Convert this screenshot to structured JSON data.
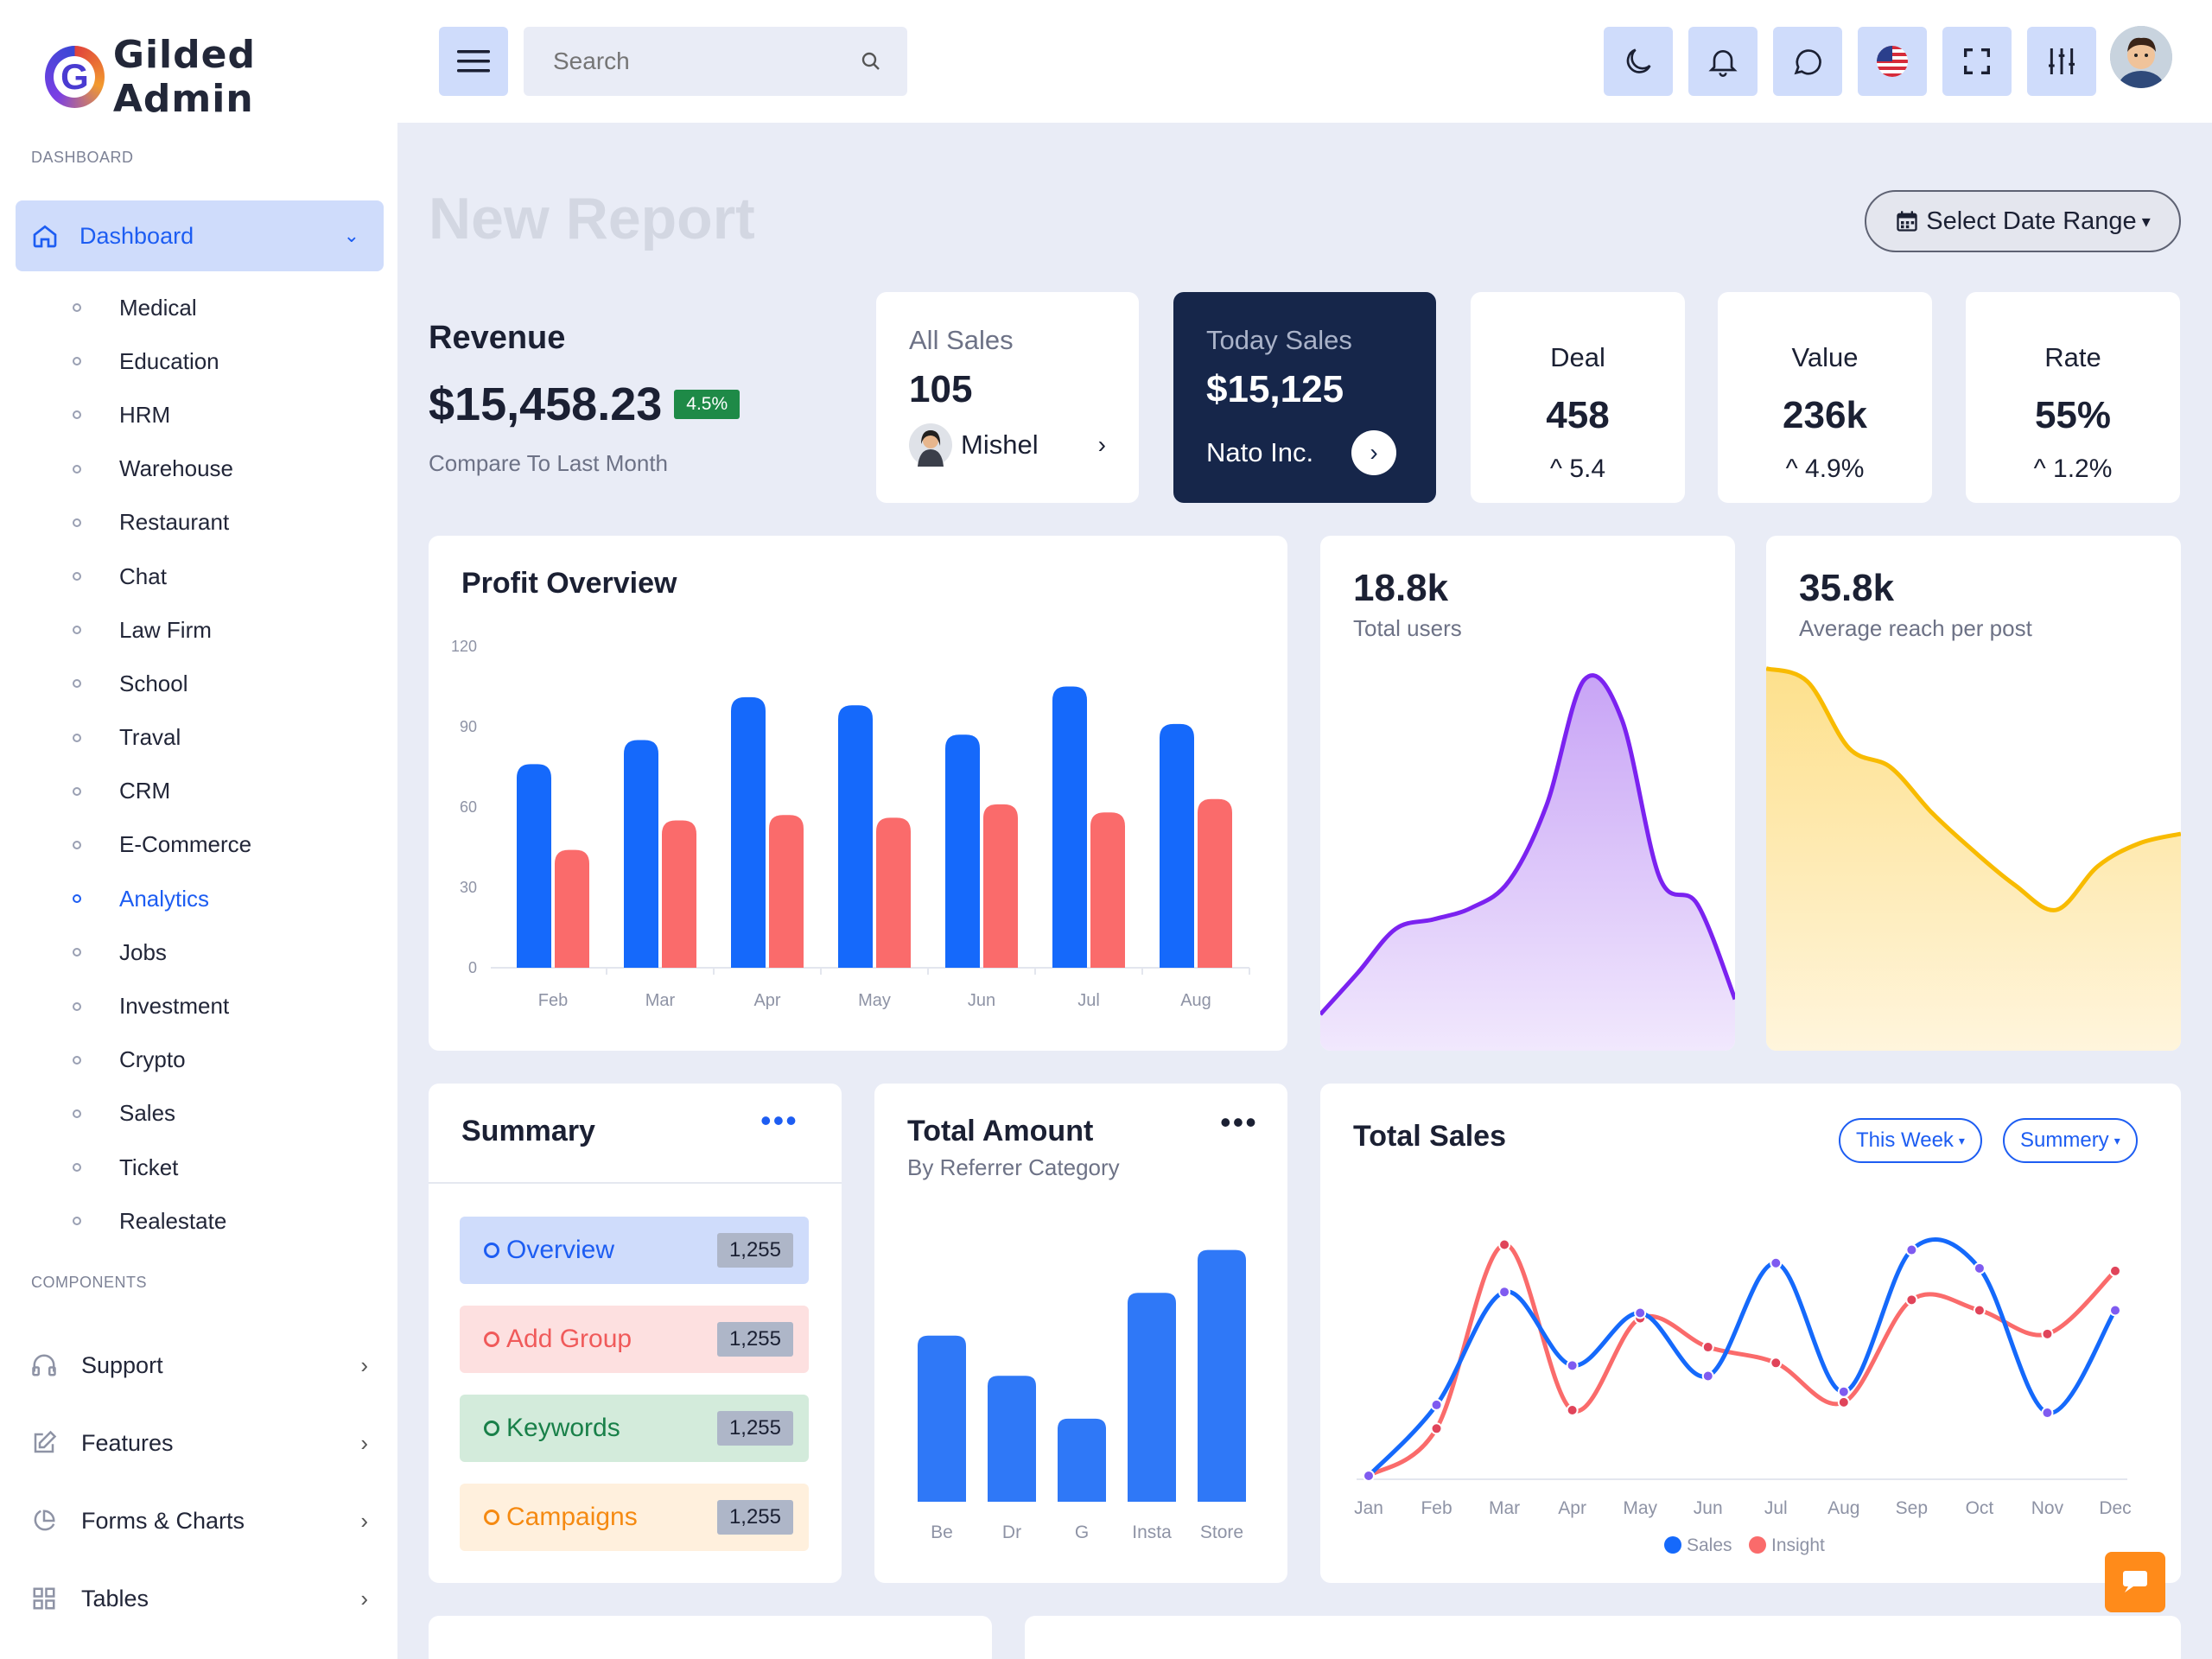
{
  "brand": {
    "name": "Gilded Admin",
    "letter": "G"
  },
  "sidebar": {
    "section_dashboard": "DASHBOARD",
    "dashboard_label": "Dashboard",
    "sub_items": [
      "Medical",
      "Education",
      "HRM",
      "Warehouse",
      "Restaurant",
      "Chat",
      "Law Firm",
      "School",
      "Traval",
      "CRM",
      "E-Commerce",
      "Analytics",
      "Jobs",
      "Investment",
      "Crypto",
      "Sales",
      "Ticket",
      "Realestate"
    ],
    "active_item": "Analytics",
    "section_components": "COMPONENTS",
    "components": [
      "Support",
      "Features",
      "Forms & Charts",
      "Tables"
    ]
  },
  "header": {
    "search_placeholder": "Search"
  },
  "page": {
    "title": "New Report",
    "date_range_label": "Select Date Range"
  },
  "revenue": {
    "title": "Revenue",
    "value": "$15,458.23",
    "badge": "4.5%",
    "subtitle": "Compare To Last Month"
  },
  "all_sales": {
    "title": "All Sales",
    "value": "105",
    "person": "Mishel"
  },
  "today_sales": {
    "title": "Today Sales",
    "value": "$15,125",
    "company": "Nato Inc."
  },
  "stats": [
    {
      "title": "Deal",
      "value": "458",
      "delta": "5.4"
    },
    {
      "title": "Value",
      "value": "236k",
      "delta": "4.9%"
    },
    {
      "title": "Rate",
      "value": "55%",
      "delta": "1.2%"
    }
  ],
  "users_card": {
    "value": "18.8k",
    "label": "Total users"
  },
  "reach_card": {
    "value": "35.8k",
    "label": "Average reach per post"
  },
  "summary": {
    "title": "Summary",
    "rows": [
      {
        "label": "Overview",
        "count": "1,255"
      },
      {
        "label": "Add Group",
        "count": "1,255"
      },
      {
        "label": "Keywords",
        "count": "1,255"
      },
      {
        "label": "Campaigns",
        "count": "1,255"
      }
    ]
  },
  "total_amount": {
    "title": "Total Amount",
    "subtitle": "By Referrer Category"
  },
  "total_sales": {
    "title": "Total Sales",
    "filter_week": "This Week",
    "filter_summary": "Summery"
  },
  "colors": {
    "primary": "#1d5df2",
    "sales_blue": "#1569fb",
    "insight_red": "#fa6b6b",
    "purple": "#7b22f0",
    "yellow": "#f8bb00",
    "dark_card": "#16264a"
  },
  "chart_data": [
    {
      "type": "bar",
      "title": "Profit Overview",
      "categories": [
        "Feb",
        "Mar",
        "Apr",
        "May",
        "Jun",
        "Jul",
        "Aug"
      ],
      "yticks": [
        0,
        30,
        60,
        90,
        120
      ],
      "ylim": [
        0,
        120
      ],
      "series": [
        {
          "values": [
            76,
            85,
            101,
            98,
            87,
            105,
            91
          ]
        },
        {
          "values": [
            44,
            55,
            57,
            56,
            61,
            58,
            63
          ]
        }
      ]
    },
    {
      "type": "area",
      "x": [
        0,
        1,
        2,
        3,
        4,
        5,
        6,
        7,
        8,
        9,
        10,
        11
      ],
      "values": [
        10,
        32,
        55,
        60,
        66,
        80,
        120,
        186,
        165,
        82,
        68,
        18
      ]
    },
    {
      "type": "area",
      "x": [
        0,
        1,
        2,
        3,
        4,
        5,
        6,
        7,
        8,
        9,
        10
      ],
      "values": [
        192,
        185,
        150,
        140,
        116,
        96,
        78,
        65,
        88,
        100,
        105
      ]
    },
    {
      "type": "bar",
      "categories": [
        "Be",
        "Dr",
        "G",
        "Insta",
        "Store"
      ],
      "values": [
        62,
        47,
        31,
        78,
        94
      ]
    },
    {
      "type": "line",
      "categories": [
        "Jan",
        "Feb",
        "Mar",
        "Apr",
        "May",
        "Jun",
        "Jul",
        "Aug",
        "Sep",
        "Oct",
        "Nov",
        "Dec"
      ],
      "legend_position": "bottom",
      "series": [
        {
          "name": "Sales",
          "values": [
            0,
            27,
            70,
            42,
            62,
            38,
            81,
            32,
            86,
            79,
            24,
            63
          ]
        },
        {
          "name": "Insight",
          "values": [
            0,
            18,
            88,
            25,
            60,
            49,
            43,
            28,
            67,
            63,
            54,
            78
          ]
        }
      ]
    }
  ]
}
